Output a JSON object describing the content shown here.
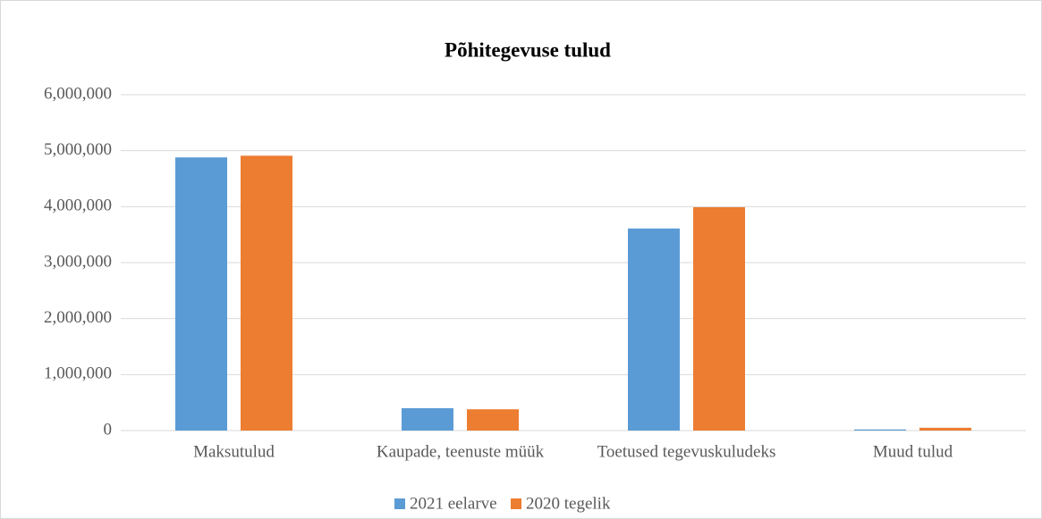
{
  "chart_data": {
    "type": "bar",
    "title": "Põhitegevuse tulud",
    "categories": [
      "Maksutulud",
      "Kaupade, teenuste müük",
      "Toetused tegevuskuludeks",
      "Muud tulud"
    ],
    "series": [
      {
        "name": "2021 eelarve",
        "color": "#5b9bd5",
        "values": [
          4880000,
          400000,
          3610000,
          20000
        ]
      },
      {
        "name": "2020 tegelik",
        "color": "#ed7d31",
        "values": [
          4910000,
          380000,
          3990000,
          50000
        ]
      }
    ],
    "ylim": [
      0,
      6000000
    ],
    "yticks": [
      0,
      {
        "value": 1000000,
        "label": "1,000,000"
      },
      {
        "value": 2000000,
        "label": "2,000,000"
      },
      {
        "value": 3000000,
        "label": "3,000,000"
      },
      {
        "value": 4000000,
        "label": "4,000,000"
      },
      {
        "value": 5000000,
        "label": "5,000,000"
      },
      {
        "value": 6000000,
        "label": "6,000,000"
      }
    ],
    "grid": true,
    "legend": "bottom"
  }
}
